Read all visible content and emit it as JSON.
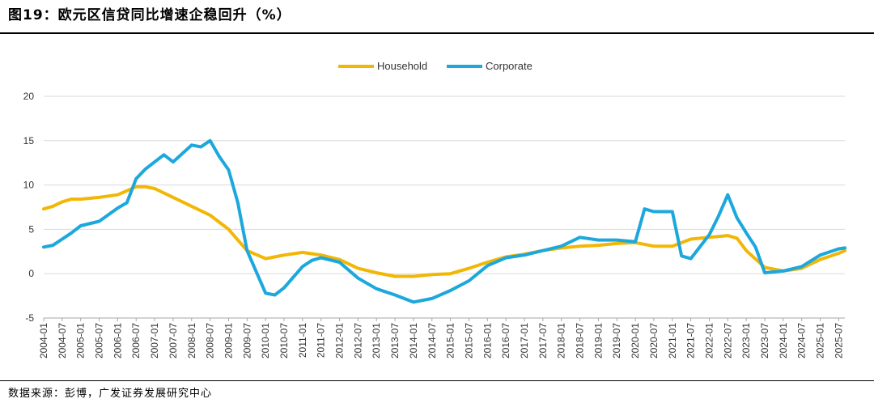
{
  "figure": {
    "title": "图19：欧元区信贷同比增速企稳回升（%）",
    "source": "数据来源：彭博，广发证券发展研究中心"
  },
  "colors": {
    "household": "#F2B705",
    "corporate": "#1CA8DD",
    "grid": "#D9D9D9"
  },
  "chart_data": {
    "type": "line",
    "title": "",
    "xlabel": "",
    "ylabel": "",
    "ylim": [
      -5,
      20
    ],
    "yticks": [
      -5,
      0,
      5,
      10,
      15,
      20
    ],
    "grid": true,
    "legend_position": "top-center",
    "x_start": "2004-01",
    "x_end": "2025-09",
    "x_tick_labels": [
      "2004-01",
      "2004-07",
      "2005-01",
      "2005-07",
      "2006-01",
      "2006-07",
      "2007-01",
      "2007-07",
      "2008-01",
      "2008-07",
      "2009-01",
      "2009-07",
      "2010-01",
      "2010-07",
      "2011-01",
      "2011-07",
      "2012-01",
      "2012-07",
      "2013-01",
      "2013-07",
      "2014-01",
      "2014-07",
      "2015-01",
      "2015-07",
      "2016-01",
      "2016-07",
      "2017-01",
      "2017-07",
      "2018-01",
      "2018-07",
      "2019-01",
      "2019-07",
      "2020-01",
      "2020-07",
      "2021-01",
      "2021-07",
      "2022-01",
      "2022-07",
      "2023-01",
      "2023-07",
      "2024-01",
      "2024-07",
      "2025-01",
      "2025-07"
    ],
    "series": [
      {
        "name": "Household",
        "color_key": "household",
        "points": [
          [
            "2004-01",
            7.3
          ],
          [
            "2004-04",
            7.6
          ],
          [
            "2004-07",
            8.1
          ],
          [
            "2004-10",
            8.4
          ],
          [
            "2005-01",
            8.4
          ],
          [
            "2005-07",
            8.6
          ],
          [
            "2006-01",
            8.9
          ],
          [
            "2006-07",
            9.8
          ],
          [
            "2006-10",
            9.8
          ],
          [
            "2007-01",
            9.6
          ],
          [
            "2007-07",
            8.6
          ],
          [
            "2008-01",
            7.6
          ],
          [
            "2008-07",
            6.6
          ],
          [
            "2009-01",
            5.0
          ],
          [
            "2009-07",
            2.6
          ],
          [
            "2010-01",
            1.7
          ],
          [
            "2010-07",
            2.1
          ],
          [
            "2011-01",
            2.4
          ],
          [
            "2011-07",
            2.1
          ],
          [
            "2012-01",
            1.6
          ],
          [
            "2012-07",
            0.6
          ],
          [
            "2013-01",
            0.1
          ],
          [
            "2013-07",
            -0.3
          ],
          [
            "2014-01",
            -0.3
          ],
          [
            "2014-07",
            -0.1
          ],
          [
            "2015-01",
            0.0
          ],
          [
            "2015-07",
            0.6
          ],
          [
            "2016-01",
            1.3
          ],
          [
            "2016-07",
            1.9
          ],
          [
            "2017-01",
            2.2
          ],
          [
            "2017-07",
            2.6
          ],
          [
            "2018-01",
            2.9
          ],
          [
            "2018-07",
            3.1
          ],
          [
            "2019-01",
            3.2
          ],
          [
            "2019-07",
            3.4
          ],
          [
            "2020-01",
            3.5
          ],
          [
            "2020-07",
            3.1
          ],
          [
            "2021-01",
            3.1
          ],
          [
            "2021-07",
            3.9
          ],
          [
            "2022-01",
            4.1
          ],
          [
            "2022-07",
            4.3
          ],
          [
            "2022-10",
            4.0
          ],
          [
            "2023-01",
            2.6
          ],
          [
            "2023-07",
            0.7
          ],
          [
            "2024-01",
            0.3
          ],
          [
            "2024-07",
            0.6
          ],
          [
            "2025-01",
            1.6
          ],
          [
            "2025-07",
            2.3
          ],
          [
            "2025-09",
            2.6
          ]
        ]
      },
      {
        "name": "Corporate",
        "color_key": "corporate",
        "points": [
          [
            "2004-01",
            3.0
          ],
          [
            "2004-04",
            3.2
          ],
          [
            "2004-07",
            3.9
          ],
          [
            "2004-10",
            4.6
          ],
          [
            "2005-01",
            5.4
          ],
          [
            "2005-07",
            5.9
          ],
          [
            "2006-01",
            7.4
          ],
          [
            "2006-04",
            8.0
          ],
          [
            "2006-07",
            10.7
          ],
          [
            "2006-10",
            11.8
          ],
          [
            "2007-01",
            12.6
          ],
          [
            "2007-04",
            13.4
          ],
          [
            "2007-07",
            12.6
          ],
          [
            "2008-01",
            14.5
          ],
          [
            "2008-04",
            14.3
          ],
          [
            "2008-07",
            15.0
          ],
          [
            "2008-10",
            13.2
          ],
          [
            "2009-01",
            11.7
          ],
          [
            "2009-04",
            8.0
          ],
          [
            "2009-07",
            2.6
          ],
          [
            "2010-01",
            -2.2
          ],
          [
            "2010-04",
            -2.4
          ],
          [
            "2010-07",
            -1.6
          ],
          [
            "2011-01",
            0.8
          ],
          [
            "2011-04",
            1.5
          ],
          [
            "2011-07",
            1.8
          ],
          [
            "2012-01",
            1.3
          ],
          [
            "2012-07",
            -0.5
          ],
          [
            "2013-01",
            -1.7
          ],
          [
            "2013-07",
            -2.4
          ],
          [
            "2014-01",
            -3.2
          ],
          [
            "2014-07",
            -2.8
          ],
          [
            "2015-01",
            -1.9
          ],
          [
            "2015-07",
            -0.8
          ],
          [
            "2016-01",
            0.9
          ],
          [
            "2016-07",
            1.8
          ],
          [
            "2017-01",
            2.1
          ],
          [
            "2017-07",
            2.6
          ],
          [
            "2018-01",
            3.1
          ],
          [
            "2018-07",
            4.1
          ],
          [
            "2019-01",
            3.8
          ],
          [
            "2019-07",
            3.8
          ],
          [
            "2020-01",
            3.6
          ],
          [
            "2020-04",
            7.3
          ],
          [
            "2020-07",
            7.0
          ],
          [
            "2021-01",
            7.0
          ],
          [
            "2021-04",
            2.0
          ],
          [
            "2021-07",
            1.7
          ],
          [
            "2022-01",
            4.4
          ],
          [
            "2022-04",
            6.5
          ],
          [
            "2022-07",
            8.9
          ],
          [
            "2022-10",
            6.3
          ],
          [
            "2023-01",
            4.6
          ],
          [
            "2023-04",
            3.0
          ],
          [
            "2023-07",
            0.1
          ],
          [
            "2024-01",
            0.3
          ],
          [
            "2024-07",
            0.8
          ],
          [
            "2025-01",
            2.1
          ],
          [
            "2025-07",
            2.8
          ],
          [
            "2025-09",
            2.9
          ]
        ]
      }
    ]
  }
}
